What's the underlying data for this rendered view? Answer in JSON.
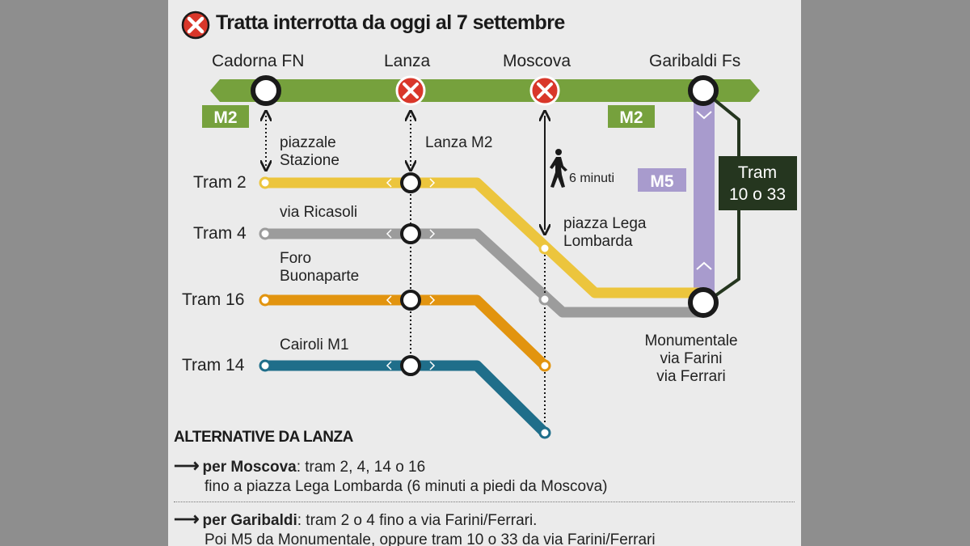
{
  "header": {
    "title": "Tratta interrotta da oggi al 7 settembre",
    "icon": "closed-x-icon"
  },
  "colors": {
    "m2": "#76a13d",
    "m5": "#a89bcd",
    "tram2": "#ecc53d",
    "tram4": "#9c9c9c",
    "tram16": "#e2940f",
    "tram14": "#1f6e8a",
    "closed": "#d9372a",
    "tram_box": "#25361f"
  },
  "stations": {
    "cadorna": "Cadorna FN",
    "lanza": "Lanza",
    "moscova": "Moscova",
    "garibaldi": "Garibaldi Fs"
  },
  "badges": {
    "m2_left": "M2",
    "m2_right": "M2",
    "m5": "M5"
  },
  "stops": {
    "piazzale": "piazzale\nStazione",
    "lanza_m2": "Lanza M2",
    "ricasoli": "via Ricasoli",
    "foro": "Foro\nBuonaparte",
    "cairoli": "Cairoli M1",
    "lega": "piazza Lega\nLombarda",
    "monumentale": "Monumentale\nvia Farini\nvia Ferrari"
  },
  "walk": {
    "label": "6 minuti",
    "icon": "walking-person-icon"
  },
  "tram_box": {
    "line1": "Tram",
    "line2": "10 o 33"
  },
  "trams": [
    "Tram 2",
    "Tram 4",
    "Tram 16",
    "Tram 14"
  ],
  "alternatives": {
    "heading": "ALTERNATIVE DA LANZA",
    "moscova_bold": "per Moscova",
    "moscova_text": ": tram 2, 4, 14 o 16",
    "moscova_text2": "fino a piazza Lega Lombarda (6 minuti a piedi da Moscova)",
    "garibaldi_bold": "per Garibaldi",
    "garibaldi_text": ": tram 2 o 4 fino a via Farini/Ferrari.",
    "garibaldi_text2": "Poi M5 da Monumentale, oppure tram 10 o 33 da via Farini/Ferrari"
  }
}
